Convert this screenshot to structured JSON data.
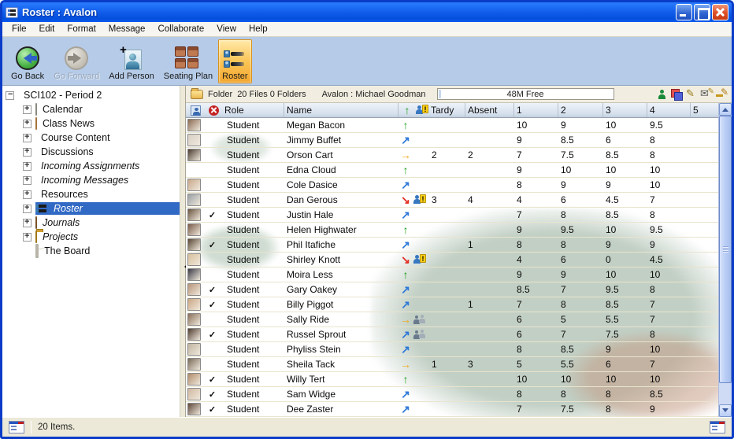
{
  "window": {
    "title": "Roster : Avalon"
  },
  "menu": {
    "items": [
      "File",
      "Edit",
      "Format",
      "Message",
      "Collaborate",
      "View",
      "Help"
    ]
  },
  "toolbar": {
    "buttons": [
      {
        "id": "go-back",
        "label": "Go Back",
        "disabled": false,
        "active": false
      },
      {
        "id": "go-forward",
        "label": "Go Forward",
        "disabled": true,
        "active": false
      },
      {
        "id": "add-person",
        "label": "Add Person",
        "disabled": false,
        "active": false
      },
      {
        "id": "seating-plan",
        "label": "Seating Plan",
        "disabled": false,
        "active": false
      },
      {
        "id": "roster",
        "label": "Roster",
        "disabled": false,
        "active": true
      }
    ]
  },
  "sidebar": {
    "root": {
      "label": "SCI102 - Period 2",
      "icon": "flask-icon",
      "expanded": true
    },
    "items": [
      {
        "label": "Calendar",
        "icon": "calendar-icon",
        "italic": false,
        "selected": false,
        "leaf": false
      },
      {
        "label": "Class News",
        "icon": "news-icon",
        "italic": false,
        "selected": false,
        "leaf": false
      },
      {
        "label": "Course Content",
        "icon": "course-content-icon",
        "italic": false,
        "selected": false,
        "leaf": false
      },
      {
        "label": "Discussions",
        "icon": "discussions-icon",
        "italic": false,
        "selected": false,
        "leaf": false
      },
      {
        "label": "Incoming Assignments",
        "icon": "assignments-icon",
        "italic": true,
        "selected": false,
        "leaf": false
      },
      {
        "label": "Incoming Messages",
        "icon": "messages-icon",
        "italic": true,
        "selected": false,
        "leaf": false
      },
      {
        "label": "Resources",
        "icon": "resources-icon",
        "italic": false,
        "selected": false,
        "leaf": false
      },
      {
        "label": "Roster",
        "icon": "roster-icon",
        "italic": true,
        "selected": true,
        "leaf": false
      },
      {
        "label": "Journals",
        "icon": "journals-icon",
        "italic": true,
        "selected": false,
        "leaf": false
      },
      {
        "label": "Projects",
        "icon": "projects-icon",
        "italic": true,
        "selected": false,
        "leaf": false
      },
      {
        "label": "The Board",
        "icon": "board-icon",
        "italic": false,
        "selected": false,
        "leaf": true
      }
    ]
  },
  "infobar": {
    "folder_label": "Folder",
    "counts": "20 Files 0 Folders",
    "owner": "Avalon : Michael Goodman",
    "free": "48M Free",
    "right_icons": [
      "person-icon",
      "layers-icon",
      "pencil-icon",
      "mail-edit-icon",
      "key-edit-icon"
    ]
  },
  "table": {
    "columns": {
      "role": "Role",
      "name": "Name",
      "tardy": "Tardy",
      "absent": "Absent",
      "grades": [
        "1",
        "2",
        "3",
        "4",
        "5"
      ]
    },
    "rows": [
      {
        "checked": false,
        "avatar": true,
        "role": "Student",
        "name": "Megan Bacon",
        "trend": "up",
        "alert": "none",
        "tardy": "",
        "absent": "",
        "grades": [
          "10",
          "9",
          "10",
          "9.5",
          ""
        ]
      },
      {
        "checked": false,
        "avatar": true,
        "role": "Student",
        "name": "Jimmy Buffet",
        "trend": "upright",
        "alert": "none",
        "tardy": "",
        "absent": "",
        "grades": [
          "9",
          "8.5",
          "6",
          "8",
          ""
        ]
      },
      {
        "checked": false,
        "avatar": true,
        "role": "Student",
        "name": "Orson Cart",
        "trend": "right",
        "alert": "none",
        "tardy": "2",
        "absent": "2",
        "grades": [
          "7",
          "7.5",
          "8.5",
          "8",
          ""
        ]
      },
      {
        "checked": false,
        "avatar": false,
        "role": "Student",
        "name": "Edna Cloud",
        "trend": "up",
        "alert": "none",
        "tardy": "",
        "absent": "",
        "grades": [
          "9",
          "10",
          "10",
          "10",
          ""
        ]
      },
      {
        "checked": false,
        "avatar": true,
        "role": "Student",
        "name": "Cole Dasice",
        "trend": "upright",
        "alert": "none",
        "tardy": "",
        "absent": "",
        "grades": [
          "8",
          "9",
          "9",
          "10",
          ""
        ]
      },
      {
        "checked": false,
        "avatar": true,
        "role": "Student",
        "name": "Dan Gerous",
        "trend": "downright",
        "alert": "warning",
        "tardy": "3",
        "absent": "4",
        "grades": [
          "4",
          "6",
          "4.5",
          "7",
          ""
        ]
      },
      {
        "checked": true,
        "avatar": true,
        "role": "Student",
        "name": "Justin Hale",
        "trend": "upright",
        "alert": "none",
        "tardy": "",
        "absent": "",
        "grades": [
          "7",
          "8",
          "8.5",
          "8",
          ""
        ]
      },
      {
        "checked": false,
        "avatar": true,
        "role": "Student",
        "name": "Helen Highwater",
        "trend": "up",
        "alert": "none",
        "tardy": "",
        "absent": "",
        "grades": [
          "9",
          "9.5",
          "10",
          "9.5",
          ""
        ]
      },
      {
        "checked": true,
        "avatar": true,
        "role": "Student",
        "name": "Phil Itafiche",
        "trend": "upright",
        "alert": "none",
        "tardy": "",
        "absent": "1",
        "grades": [
          "8",
          "8",
          "9",
          "9",
          ""
        ]
      },
      {
        "checked": false,
        "avatar": true,
        "role": "Student",
        "name": "Shirley Knott",
        "trend": "downright",
        "alert": "warning",
        "tardy": "",
        "absent": "",
        "grades": [
          "4",
          "6",
          "0",
          "4.5",
          ""
        ]
      },
      {
        "checked": false,
        "avatar": true,
        "role": "Student",
        "name": "Moira Less",
        "trend": "up",
        "alert": "none",
        "tardy": "",
        "absent": "",
        "grades": [
          "9",
          "9",
          "10",
          "10",
          ""
        ]
      },
      {
        "checked": true,
        "avatar": true,
        "role": "Student",
        "name": "Gary Oakey",
        "trend": "upright",
        "alert": "none",
        "tardy": "",
        "absent": "",
        "grades": [
          "8.5",
          "7",
          "9.5",
          "8",
          ""
        ]
      },
      {
        "checked": true,
        "avatar": true,
        "role": "Student",
        "name": "Billy Piggot",
        "trend": "upright",
        "alert": "none",
        "tardy": "",
        "absent": "1",
        "grades": [
          "7",
          "8",
          "8.5",
          "7",
          ""
        ]
      },
      {
        "checked": false,
        "avatar": true,
        "role": "Student",
        "name": "Sally Ride",
        "trend": "right",
        "alert": "group",
        "tardy": "",
        "absent": "",
        "grades": [
          "6",
          "5",
          "5.5",
          "7",
          ""
        ]
      },
      {
        "checked": true,
        "avatar": true,
        "role": "Student",
        "name": "Russel Sprout",
        "trend": "upright",
        "alert": "group",
        "tardy": "",
        "absent": "",
        "grades": [
          "6",
          "7",
          "7.5",
          "8",
          ""
        ]
      },
      {
        "checked": false,
        "avatar": true,
        "role": "Student",
        "name": "Phyliss Stein",
        "trend": "upright",
        "alert": "none",
        "tardy": "",
        "absent": "",
        "grades": [
          "8",
          "8.5",
          "9",
          "10",
          ""
        ]
      },
      {
        "checked": false,
        "avatar": true,
        "role": "Student",
        "name": "Sheila Tack",
        "trend": "right",
        "alert": "none",
        "tardy": "1",
        "absent": "3",
        "grades": [
          "5",
          "5.5",
          "6",
          "7",
          ""
        ]
      },
      {
        "checked": true,
        "avatar": true,
        "role": "Student",
        "name": "Willy Tert",
        "trend": "up",
        "alert": "none",
        "tardy": "",
        "absent": "",
        "grades": [
          "10",
          "10",
          "10",
          "10",
          ""
        ]
      },
      {
        "checked": true,
        "avatar": true,
        "role": "Student",
        "name": "Sam Widge",
        "trend": "upright",
        "alert": "none",
        "tardy": "",
        "absent": "",
        "grades": [
          "8",
          "8",
          "8",
          "8.5",
          ""
        ]
      },
      {
        "checked": true,
        "avatar": true,
        "role": "Student",
        "name": "Dee Zaster",
        "trend": "upright",
        "alert": "none",
        "tardy": "",
        "absent": "",
        "grades": [
          "7",
          "7.5",
          "8",
          "9",
          ""
        ]
      }
    ]
  },
  "statusbar": {
    "text": "20 Items."
  },
  "colors": {
    "titlebar_blue": "#0f5ae8",
    "toolbar_blue": "#b6cbe7",
    "active_button_orange": "#f2a62e",
    "selection_blue": "#316ac5",
    "trend_up": "#1ba01b",
    "trend_upright": "#2d78d8",
    "trend_right": "#f2a714",
    "trend_downright": "#e22c20"
  }
}
